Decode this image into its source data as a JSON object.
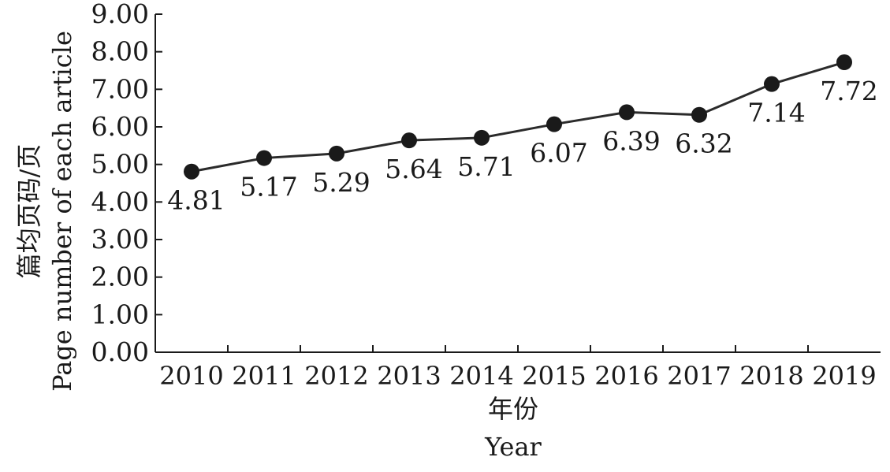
{
  "chart_data": {
    "type": "line",
    "categories": [
      "2010",
      "2011",
      "2012",
      "2013",
      "2014",
      "2015",
      "2016",
      "2017",
      "2018",
      "2019"
    ],
    "values": [
      4.81,
      5.17,
      5.29,
      5.64,
      5.71,
      6.07,
      6.39,
      6.32,
      7.14,
      7.72
    ],
    "value_labels": [
      "4.81",
      "5.17",
      "5.29",
      "5.64",
      "5.71",
      "6.07",
      "6.39",
      "6.32",
      "7.14",
      "7.72"
    ],
    "xlabel_cn": "年份",
    "xlabel_en": "Year",
    "ylabel_cn": "篇均页码/页",
    "ylabel_en": "Page number of each article",
    "ylim": [
      0,
      9
    ],
    "yticks": [
      "0.00",
      "1.00",
      "2.00",
      "3.00",
      "4.00",
      "5.00",
      "6.00",
      "7.00",
      "8.00",
      "9.00"
    ],
    "grid": false,
    "line_color": "#2b2b2b",
    "marker_color": "#1a1a1a"
  }
}
